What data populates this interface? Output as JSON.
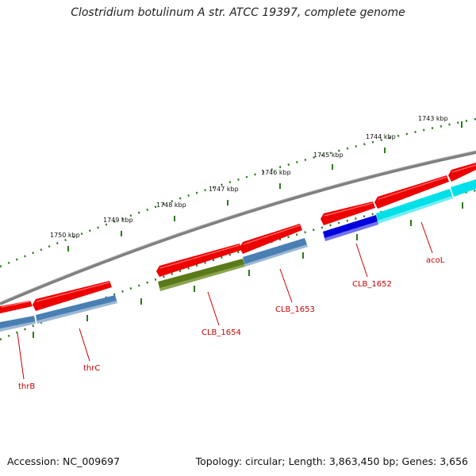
{
  "title": "Clostridium botulinum A str. ATCC 19397, complete genome",
  "footer": {
    "accession_label": "Accession: NC_009697",
    "topology_label": "Topology: circular; Length: 3,863,450 bp; Genes: 3,656"
  },
  "ticks": [
    {
      "label": "1743 kbp"
    },
    {
      "label": "1744 kbp"
    },
    {
      "label": "1745 kbp"
    },
    {
      "label": "1746 kbp"
    },
    {
      "label": "1747 kbp"
    },
    {
      "label": "1748 kbp"
    },
    {
      "label": "1749 kbp"
    },
    {
      "label": "1750 kbp"
    }
  ],
  "genes": [
    {
      "label": "thrB",
      "color": "#4a7fb3"
    },
    {
      "label": "thrC",
      "color": "#4a7fb3"
    },
    {
      "label": "CLB_1654",
      "color": "#5a7a1a"
    },
    {
      "label": "CLB_1653",
      "color": "#4a7fb3"
    },
    {
      "label": "CLB_1652",
      "color": "#0000dd"
    },
    {
      "label": "acoL",
      "color": "#00e0e8"
    }
  ],
  "colors": {
    "cds": "#ee0000",
    "backbone": "#808080",
    "tick": "#2a7a1a",
    "label": "#cc0000"
  }
}
